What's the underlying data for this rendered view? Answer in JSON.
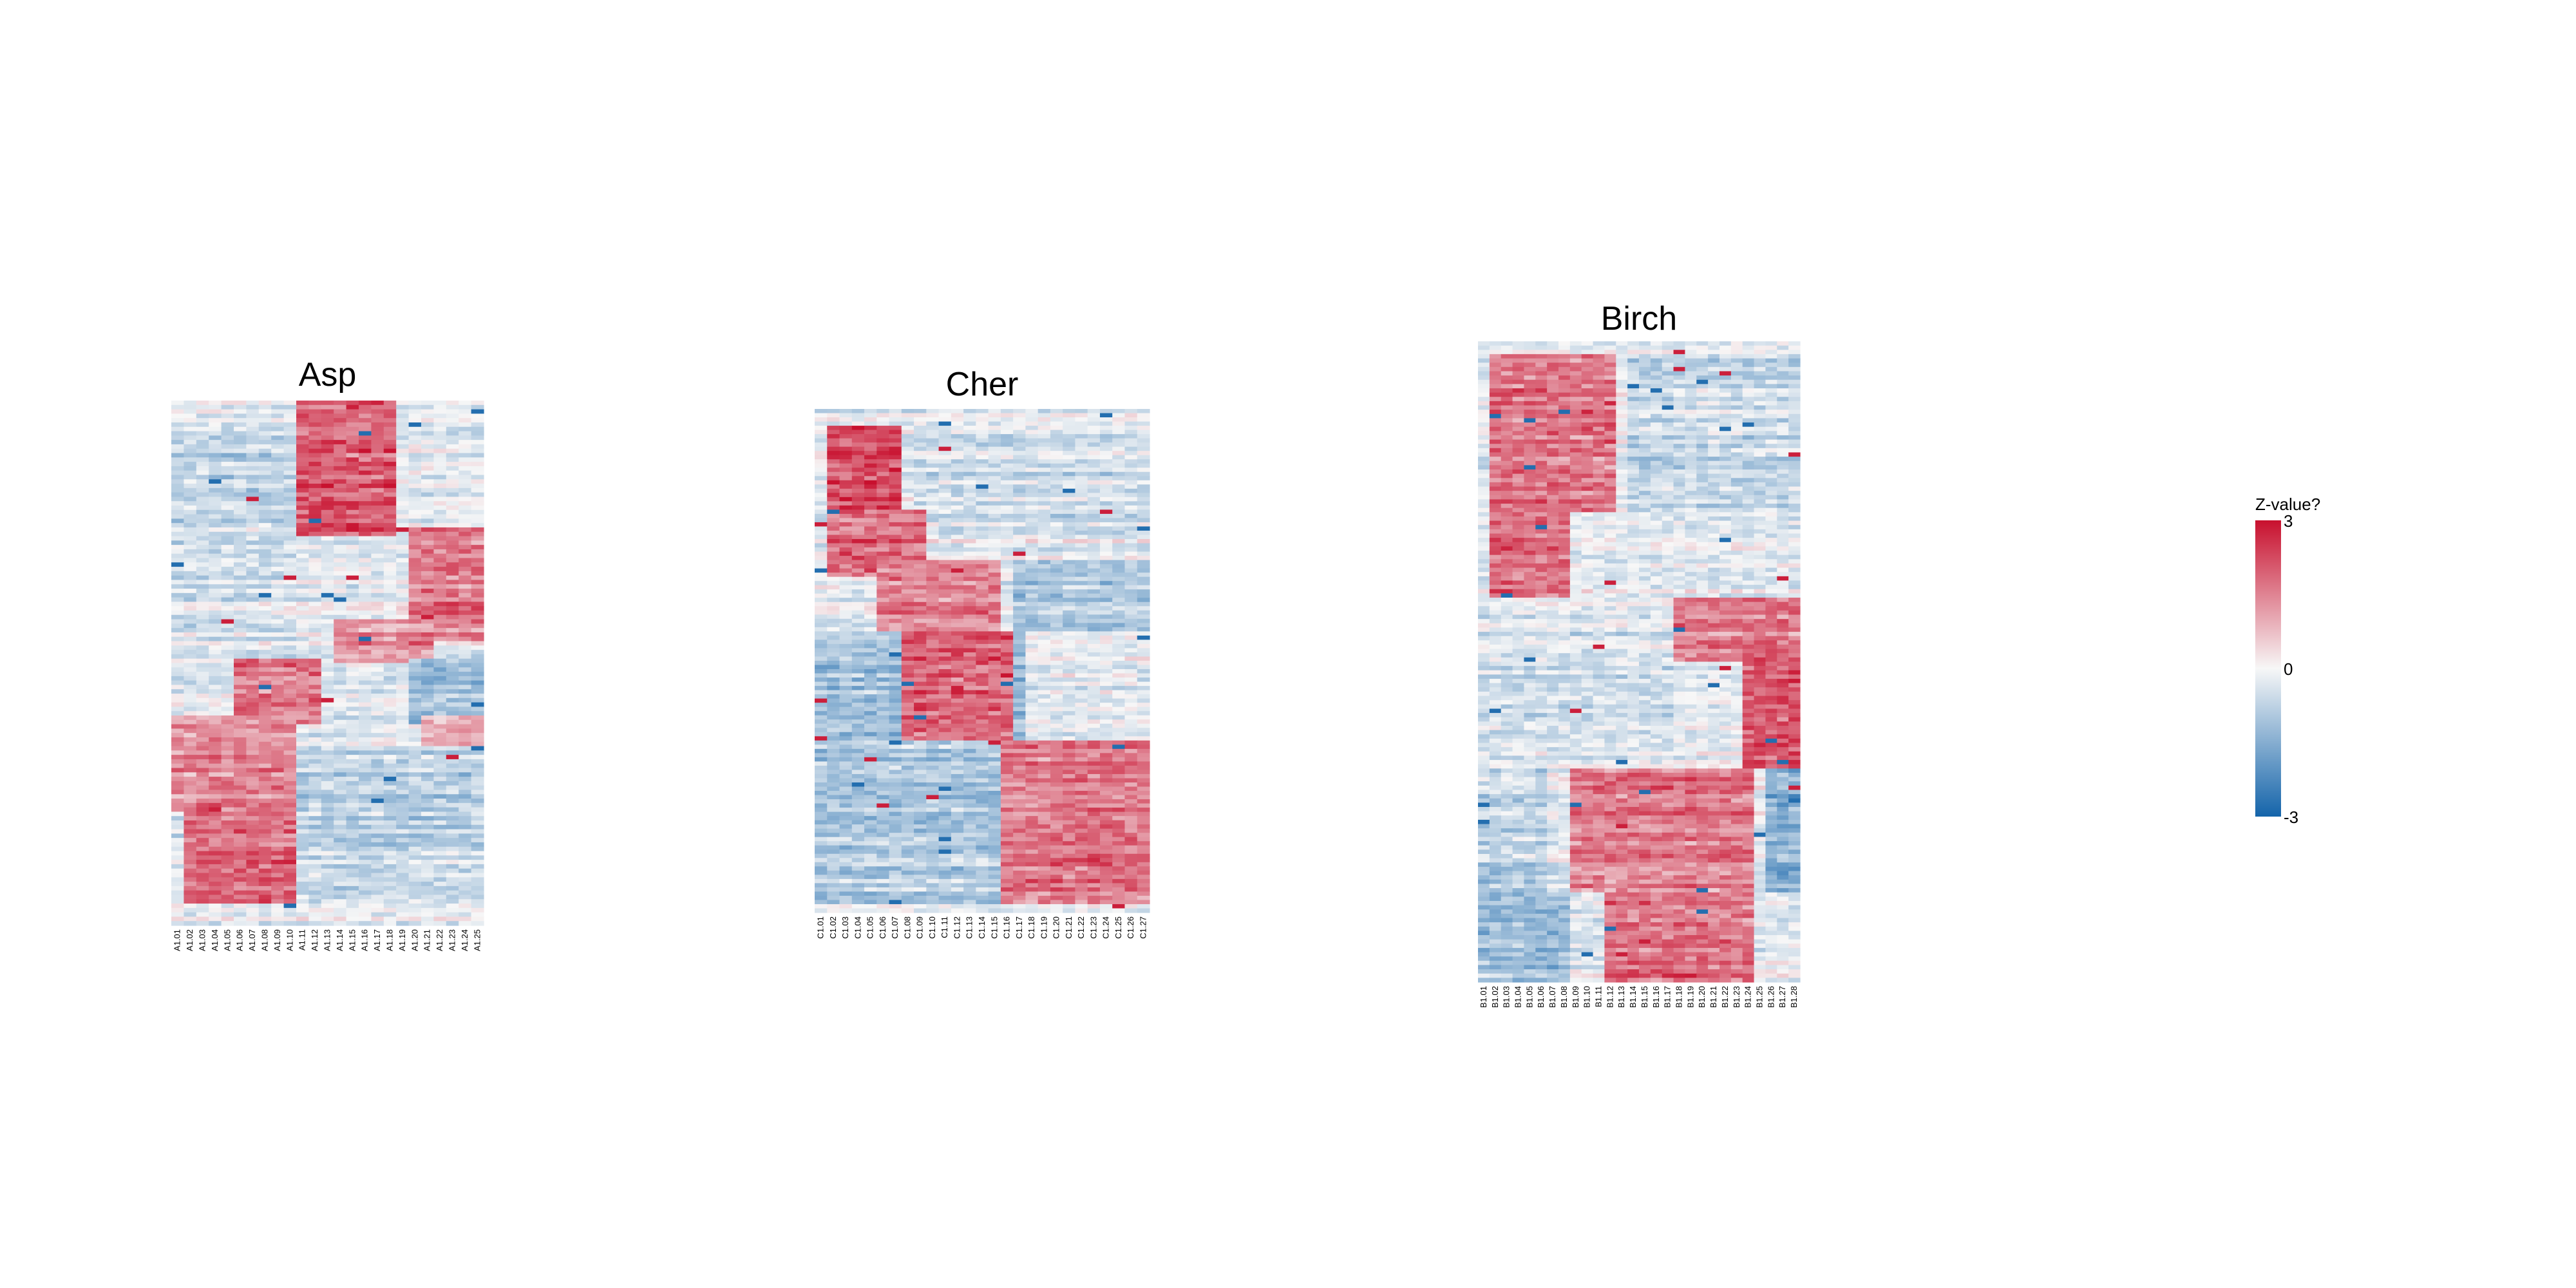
{
  "chart_data": [
    {
      "type": "heatmap",
      "title": "Asp",
      "columns": [
        "A1.01",
        "A1.02",
        "A1.03",
        "A1.04",
        "A1.05",
        "A1.06",
        "A1.07",
        "A1.08",
        "A1.09",
        "A1.10",
        "A1.11",
        "A1.12",
        "A1.13",
        "A1.14",
        "A1.15",
        "A1.16",
        "A1.17",
        "A1.18",
        "A1.19",
        "A1.20",
        "A1.21",
        "A1.22",
        "A1.23",
        "A1.24",
        "A1.25"
      ],
      "row_count": 120,
      "blocks": [
        {
          "rows": [
            0,
            0.09
          ],
          "cols": [
            10,
            18
          ],
          "z": 2.0
        },
        {
          "rows": [
            0.07,
            0.26
          ],
          "cols": [
            10,
            18
          ],
          "z": 2.2
        },
        {
          "rows": [
            0.07,
            0.26
          ],
          "cols": [
            0,
            10
          ],
          "z": -0.8
        },
        {
          "rows": [
            0.24,
            0.46
          ],
          "cols": [
            19,
            25
          ],
          "z": 1.8
        },
        {
          "rows": [
            0.24,
            0.46
          ],
          "cols": [
            0,
            10
          ],
          "z": -0.5
        },
        {
          "rows": [
            0.42,
            0.5
          ],
          "cols": [
            13,
            21
          ],
          "z": 1.5
        },
        {
          "rows": [
            0.49,
            0.62
          ],
          "cols": [
            5,
            12
          ],
          "z": 1.9
        },
        {
          "rows": [
            0.49,
            0.62
          ],
          "cols": [
            19,
            25
          ],
          "z": -1.2
        },
        {
          "rows": [
            0.6,
            0.78
          ],
          "cols": [
            0,
            10
          ],
          "z": 1.5
        },
        {
          "rows": [
            0.66,
            0.76
          ],
          "cols": [
            10,
            25
          ],
          "z": -0.9
        },
        {
          "rows": [
            0.76,
            0.96
          ],
          "cols": [
            1,
            10
          ],
          "z": 2.0
        },
        {
          "rows": [
            0.76,
            0.96
          ],
          "cols": [
            10,
            25
          ],
          "z": -0.7
        },
        {
          "rows": [
            0.6,
            0.66
          ],
          "cols": [
            20,
            25
          ],
          "z": 1.2
        }
      ]
    },
    {
      "type": "heatmap",
      "title": "Cher",
      "columns": [
        "C1.01",
        "C1.02",
        "C1.03",
        "C1.04",
        "C1.05",
        "C1.06",
        "C1.07",
        "C1.08",
        "C1.09",
        "C1.10",
        "C1.11",
        "C1.12",
        "C1.13",
        "C1.14",
        "C1.15",
        "C1.16",
        "C1.17",
        "C1.18",
        "C1.19",
        "C1.20",
        "C1.21",
        "C1.22",
        "C1.23",
        "C1.24",
        "C1.25",
        "C1.26",
        "C1.27"
      ],
      "row_count": 120,
      "blocks": [
        {
          "rows": [
            0.03,
            0.22
          ],
          "cols": [
            1,
            7
          ],
          "z": 2.4
        },
        {
          "rows": [
            0.03,
            0.22
          ],
          "cols": [
            8,
            27
          ],
          "z": -0.6
        },
        {
          "rows": [
            0.2,
            0.33
          ],
          "cols": [
            1,
            9
          ],
          "z": 2.0
        },
        {
          "rows": [
            0.3,
            0.44
          ],
          "cols": [
            5,
            15
          ],
          "z": 1.6
        },
        {
          "rows": [
            0.3,
            0.44
          ],
          "cols": [
            16,
            27
          ],
          "z": -1.0
        },
        {
          "rows": [
            0.44,
            0.66
          ],
          "cols": [
            7,
            16
          ],
          "z": 2.1
        },
        {
          "rows": [
            0.44,
            0.66
          ],
          "cols": [
            0,
            7
          ],
          "z": -1.2
        },
        {
          "rows": [
            0.66,
            0.98
          ],
          "cols": [
            15,
            27
          ],
          "z": 1.8
        },
        {
          "rows": [
            0.66,
            0.98
          ],
          "cols": [
            0,
            15
          ],
          "z": -1.0
        },
        {
          "rows": [
            0.33,
            0.66
          ],
          "cols": [
            16,
            17
          ],
          "z": -1.3
        }
      ]
    },
    {
      "type": "heatmap",
      "title": "Birch",
      "columns": [
        "B1.01",
        "B1.02",
        "B1.03",
        "B1.04",
        "B1.05",
        "B1.06",
        "B1.07",
        "B1.08",
        "B1.09",
        "B1.10",
        "B1.11",
        "B1.12",
        "B1.13",
        "B1.14",
        "B1.15",
        "B1.16",
        "B1.17",
        "B1.18",
        "B1.19",
        "B1.20",
        "B1.21",
        "B1.22",
        "B1.23",
        "B1.24",
        "B1.25",
        "B1.26",
        "B1.27",
        "B1.28"
      ],
      "row_count": 150,
      "blocks": [
        {
          "rows": [
            0.02,
            0.27
          ],
          "cols": [
            1,
            12
          ],
          "z": 1.8
        },
        {
          "rows": [
            0.02,
            0.27
          ],
          "cols": [
            13,
            28
          ],
          "z": -0.7
        },
        {
          "rows": [
            0.25,
            0.4
          ],
          "cols": [
            1,
            8
          ],
          "z": 2.0
        },
        {
          "rows": [
            0.4,
            0.5
          ],
          "cols": [
            17,
            28
          ],
          "z": 1.6
        },
        {
          "rows": [
            0.48,
            0.67
          ],
          "cols": [
            23,
            28
          ],
          "z": 2.3
        },
        {
          "rows": [
            0.4,
            0.67
          ],
          "cols": [
            0,
            17
          ],
          "z": -0.5
        },
        {
          "rows": [
            0.67,
            0.86
          ],
          "cols": [
            8,
            24
          ],
          "z": 1.7
        },
        {
          "rows": [
            0.67,
            0.86
          ],
          "cols": [
            0,
            6
          ],
          "z": -0.8
        },
        {
          "rows": [
            0.67,
            0.86
          ],
          "cols": [
            25,
            28
          ],
          "z": -1.6
        },
        {
          "rows": [
            0.86,
            1.0
          ],
          "cols": [
            11,
            24
          ],
          "z": 1.9
        },
        {
          "rows": [
            0.86,
            1.0
          ],
          "cols": [
            0,
            8
          ],
          "z": -1.2
        }
      ]
    }
  ],
  "legend": {
    "title": "Z-value?",
    "ticks": [
      "3",
      "0",
      "-3"
    ],
    "max": 3,
    "min": -3,
    "colors": {
      "high": "#c8102e",
      "mid": "#f7f7f7",
      "low": "#1464aa"
    }
  }
}
